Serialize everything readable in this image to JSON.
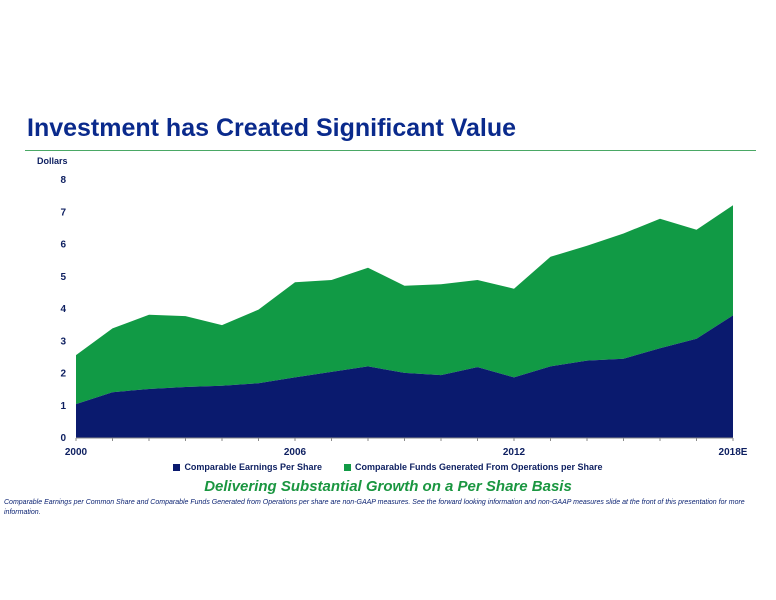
{
  "header": {
    "title": "Investment has Created Significant Value"
  },
  "chart_data": {
    "type": "area",
    "stacked": true,
    "ylabel": "Dollars",
    "ylim": [
      0,
      8
    ],
    "yticks": [
      0,
      1,
      2,
      3,
      4,
      5,
      6,
      7,
      8
    ],
    "x": [
      "2000",
      "2001",
      "2002",
      "2003",
      "2004",
      "2005",
      "2006",
      "2007",
      "2008",
      "2009",
      "2010",
      "2011",
      "2012",
      "2013",
      "2014",
      "2015",
      "2016",
      "2017",
      "2018E"
    ],
    "xtick_labels": [
      "2000",
      "2006",
      "2012",
      "2018E"
    ],
    "series": [
      {
        "name": "Comparable Earnings Per Share",
        "color": "#0a1a6e",
        "values": [
          1.05,
          1.42,
          1.52,
          1.58,
          1.62,
          1.7,
          1.88,
          2.05,
          2.22,
          2.02,
          1.95,
          2.2,
          1.88,
          2.22,
          2.4,
          2.46,
          2.78,
          3.08,
          3.8
        ]
      },
      {
        "name": "Comparable Funds Generated From Operations per Share",
        "color": "#119a45",
        "values": [
          1.52,
          1.98,
          2.3,
          2.2,
          1.88,
          2.28,
          2.95,
          2.85,
          3.06,
          2.7,
          2.82,
          2.7,
          2.75,
          3.4,
          3.56,
          3.88,
          4.02,
          3.38,
          3.42
        ]
      }
    ],
    "legend_position": "bottom",
    "grid": false
  },
  "tagline": "Delivering Substantial Growth on a Per Share Basis",
  "footnote": "Comparable Earnings per Common Share and Comparable Funds Generated from Operations per share are non-GAAP measures.  See the forward looking information and non-GAAP measures slide at the front of this presentation for more information."
}
